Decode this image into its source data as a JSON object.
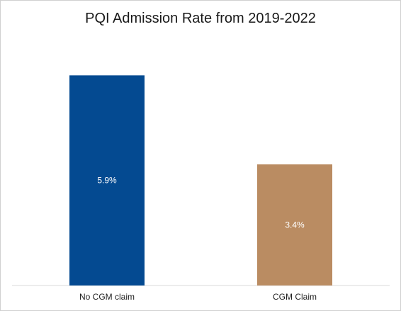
{
  "chart_data": {
    "type": "bar",
    "title": "PQI Admission Rate from 2019-2022",
    "categories": [
      "No CGM claim",
      "CGM Claim"
    ],
    "values": [
      5.9,
      3.4
    ],
    "value_labels": [
      "5.9%",
      "3.4%"
    ],
    "colors": [
      "#044a91",
      "#ba8c62"
    ],
    "ylim": [
      0,
      7.2
    ],
    "grid": false,
    "legend": "none"
  }
}
